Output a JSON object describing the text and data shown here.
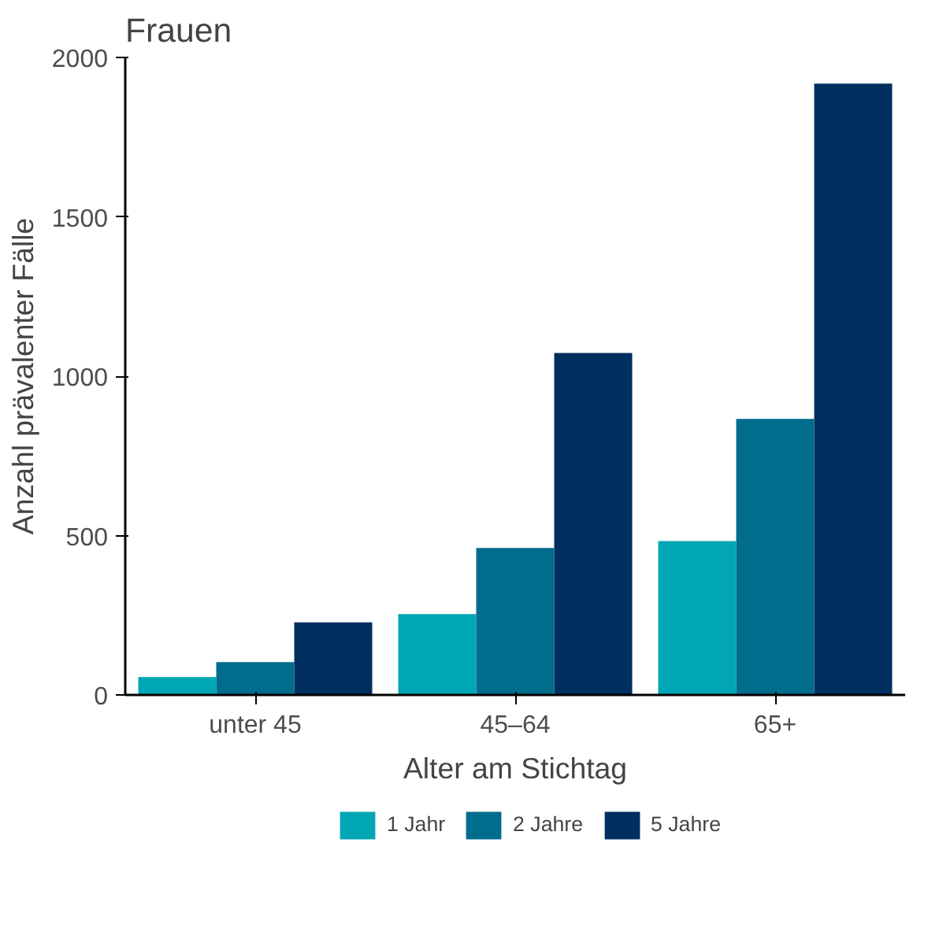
{
  "chart_data": {
    "type": "bar",
    "title": "Frauen",
    "xlabel": "Alter am Stichtag",
    "ylabel": "Anzahl prävalenter Fälle",
    "categories": [
      "unter 45",
      "45–64",
      "65+"
    ],
    "series": [
      {
        "name": "1 Jahr",
        "color": "#00a6b4",
        "values": [
          56,
          254,
          483
        ]
      },
      {
        "name": "2 Jahre",
        "color": "#006d8c",
        "values": [
          103,
          461,
          866
        ]
      },
      {
        "name": "5 Jahre",
        "color": "#002f60",
        "values": [
          228,
          1073,
          1918
        ]
      }
    ],
    "ylim": [
      0,
      2000
    ],
    "yticks": [
      0,
      500,
      1000,
      1500,
      2000
    ],
    "grid": false,
    "legend": "bottom"
  }
}
